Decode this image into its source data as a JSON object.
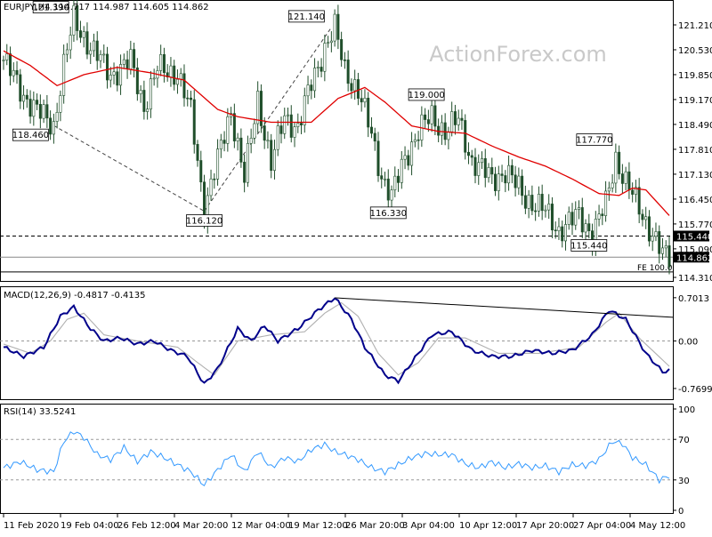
{
  "header": {
    "main_title": "EURJPY,H4  114.717 114.987 114.605 114.862",
    "macd_title": "MACD(12,26,9) -0.4817 -0.4135",
    "rsi_title": "RSI(14) 33.5241",
    "watermark": "ActionForex.com"
  },
  "colors": {
    "candle": "#1f4e2a",
    "moving_average": "#e00000",
    "macd_line": "#00008b",
    "signal_line": "#b0b0b0",
    "rsi_line": "#3399ff",
    "dashed_level": "#000000"
  },
  "chart_data": [
    {
      "type": "candlestick",
      "title": "EURJPY,H4  114.717 114.987 114.605 114.862",
      "y_ticks": [
        "121.210",
        "120.530",
        "119.850",
        "119.170",
        "118.490",
        "117.810",
        "117.130",
        "116.450",
        "115.770",
        "115.090",
        "114.310"
      ],
      "ylim": [
        114.31,
        121.55
      ],
      "x_tick_labels": [
        "11 Feb 2020",
        "19 Feb 04:00",
        "26 Feb 12:00",
        "4 Mar 20:00",
        "12 Mar 04:00",
        "19 Mar 12:00",
        "26 Mar 20:00",
        "3 Apr 04:00",
        "10 Apr 12:00",
        "17 Apr 20:00",
        "27 Apr 04:00",
        "4 May 12:00"
      ],
      "price_labels": [
        {
          "label": "121.390",
          "value": 121.39,
          "bar": 20
        },
        {
          "label": "118.460",
          "value": 118.46,
          "bar": 15
        },
        {
          "label": "116.120",
          "value": 116.12,
          "bar": 60
        },
        {
          "label": "121.140",
          "value": 121.14,
          "bar": 98
        },
        {
          "label": "116.330",
          "value": 116.33,
          "bar": 115
        },
        {
          "label": "119.000",
          "value": 119.0,
          "bar": 128
        },
        {
          "label": "115.440",
          "value": 115.44,
          "bar": 175
        },
        {
          "label": "117.770",
          "value": 117.77,
          "bar": 183
        }
      ],
      "horizontal_level": {
        "label": "115.440",
        "value": 115.44
      },
      "last_price": {
        "label": "114.862",
        "value": 114.862
      },
      "fe_label": "FE 100.0",
      "moving_average": [
        {
          "bar": 0,
          "value": 120.5
        },
        {
          "bar": 8,
          "value": 120.1
        },
        {
          "bar": 16,
          "value": 119.55
        },
        {
          "bar": 24,
          "value": 119.85
        },
        {
          "bar": 34,
          "value": 120.05
        },
        {
          "bar": 44,
          "value": 119.9
        },
        {
          "bar": 54,
          "value": 119.7
        },
        {
          "bar": 64,
          "value": 118.9
        },
        {
          "bar": 70,
          "value": 118.7
        },
        {
          "bar": 80,
          "value": 118.55
        },
        {
          "bar": 92,
          "value": 118.55
        },
        {
          "bar": 100,
          "value": 119.2
        },
        {
          "bar": 108,
          "value": 119.5
        },
        {
          "bar": 114,
          "value": 119.1
        },
        {
          "bar": 122,
          "value": 118.45
        },
        {
          "bar": 130,
          "value": 118.3
        },
        {
          "bar": 138,
          "value": 118.25
        },
        {
          "bar": 146,
          "value": 117.9
        },
        {
          "bar": 154,
          "value": 117.6
        },
        {
          "bar": 162,
          "value": 117.35
        },
        {
          "bar": 170,
          "value": 117.0
        },
        {
          "bar": 178,
          "value": 116.6
        },
        {
          "bar": 184,
          "value": 116.55
        },
        {
          "bar": 188,
          "value": 116.75
        },
        {
          "bar": 192,
          "value": 116.7
        },
        {
          "bar": 199,
          "value": 116.0
        }
      ],
      "price_path": [
        {
          "bar": 0,
          "value": 120.25
        },
        {
          "bar": 6,
          "value": 119.3
        },
        {
          "bar": 10,
          "value": 118.85
        },
        {
          "bar": 15,
          "value": 118.46
        },
        {
          "bar": 18,
          "value": 120.1
        },
        {
          "bar": 21,
          "value": 121.35
        },
        {
          "bar": 26,
          "value": 120.6
        },
        {
          "bar": 32,
          "value": 119.85
        },
        {
          "bar": 38,
          "value": 120.2
        },
        {
          "bar": 42,
          "value": 119.0
        },
        {
          "bar": 46,
          "value": 120.0
        },
        {
          "bar": 52,
          "value": 119.9
        },
        {
          "bar": 56,
          "value": 118.8
        },
        {
          "bar": 60,
          "value": 116.2
        },
        {
          "bar": 64,
          "value": 117.5
        },
        {
          "bar": 68,
          "value": 118.9
        },
        {
          "bar": 72,
          "value": 117.0
        },
        {
          "bar": 76,
          "value": 119.2
        },
        {
          "bar": 80,
          "value": 117.4
        },
        {
          "bar": 84,
          "value": 118.7
        },
        {
          "bar": 88,
          "value": 118.4
        },
        {
          "bar": 92,
          "value": 119.6
        },
        {
          "bar": 96,
          "value": 120.6
        },
        {
          "bar": 99,
          "value": 121.1
        },
        {
          "bar": 102,
          "value": 120.0
        },
        {
          "bar": 106,
          "value": 119.4
        },
        {
          "bar": 110,
          "value": 118.2
        },
        {
          "bar": 113,
          "value": 117.1
        },
        {
          "bar": 116,
          "value": 116.5
        },
        {
          "bar": 120,
          "value": 117.6
        },
        {
          "bar": 124,
          "value": 118.3
        },
        {
          "bar": 128,
          "value": 118.7
        },
        {
          "bar": 132,
          "value": 118.3
        },
        {
          "bar": 136,
          "value": 118.6
        },
        {
          "bar": 140,
          "value": 117.5
        },
        {
          "bar": 146,
          "value": 117.0
        },
        {
          "bar": 150,
          "value": 117.2
        },
        {
          "bar": 156,
          "value": 116.5
        },
        {
          "bar": 162,
          "value": 116.1
        },
        {
          "bar": 166,
          "value": 115.6
        },
        {
          "bar": 172,
          "value": 116.0
        },
        {
          "bar": 176,
          "value": 115.5
        },
        {
          "bar": 180,
          "value": 116.3
        },
        {
          "bar": 183,
          "value": 117.6
        },
        {
          "bar": 186,
          "value": 116.9
        },
        {
          "bar": 190,
          "value": 116.2
        },
        {
          "bar": 194,
          "value": 115.5
        },
        {
          "bar": 197,
          "value": 114.9
        },
        {
          "bar": 199,
          "value": 114.862
        }
      ]
    },
    {
      "type": "line",
      "title": "MACD(12,26,9) -0.4817 -0.4135",
      "y_ticks": [
        "0.7013",
        "0.00",
        "-0.7699"
      ],
      "ylim": [
        -0.9,
        0.8
      ],
      "series": [
        {
          "role": "macd",
          "values": [
            {
              "bar": 0,
              "value": -0.1
            },
            {
              "bar": 6,
              "value": -0.25
            },
            {
              "bar": 12,
              "value": -0.1
            },
            {
              "bar": 17,
              "value": 0.4
            },
            {
              "bar": 21,
              "value": 0.55
            },
            {
              "bar": 26,
              "value": 0.2
            },
            {
              "bar": 30,
              "value": 0.0
            },
            {
              "bar": 35,
              "value": 0.05
            },
            {
              "bar": 40,
              "value": -0.05
            },
            {
              "bar": 45,
              "value": 0.0
            },
            {
              "bar": 50,
              "value": -0.15
            },
            {
              "bar": 55,
              "value": -0.25
            },
            {
              "bar": 60,
              "value": -0.7
            },
            {
              "bar": 64,
              "value": -0.45
            },
            {
              "bar": 70,
              "value": 0.2
            },
            {
              "bar": 74,
              "value": 0.0
            },
            {
              "bar": 78,
              "value": 0.25
            },
            {
              "bar": 82,
              "value": 0.0
            },
            {
              "bar": 88,
              "value": 0.2
            },
            {
              "bar": 94,
              "value": 0.5
            },
            {
              "bar": 99,
              "value": 0.7
            },
            {
              "bar": 104,
              "value": 0.35
            },
            {
              "bar": 108,
              "value": -0.1
            },
            {
              "bar": 114,
              "value": -0.55
            },
            {
              "bar": 118,
              "value": -0.65
            },
            {
              "bar": 124,
              "value": -0.2
            },
            {
              "bar": 128,
              "value": 0.1
            },
            {
              "bar": 134,
              "value": 0.15
            },
            {
              "bar": 140,
              "value": -0.15
            },
            {
              "bar": 146,
              "value": -0.25
            },
            {
              "bar": 152,
              "value": -0.25
            },
            {
              "bar": 158,
              "value": -0.15
            },
            {
              "bar": 164,
              "value": -0.2
            },
            {
              "bar": 170,
              "value": -0.15
            },
            {
              "bar": 176,
              "value": 0.1
            },
            {
              "bar": 181,
              "value": 0.5
            },
            {
              "bar": 186,
              "value": 0.35
            },
            {
              "bar": 192,
              "value": -0.2
            },
            {
              "bar": 197,
              "value": -0.5
            },
            {
              "bar": 199,
              "value": -0.48
            }
          ]
        },
        {
          "role": "signal",
          "values": [
            {
              "bar": 0,
              "value": -0.05
            },
            {
              "bar": 8,
              "value": -0.2
            },
            {
              "bar": 14,
              "value": 0.0
            },
            {
              "bar": 19,
              "value": 0.35
            },
            {
              "bar": 24,
              "value": 0.45
            },
            {
              "bar": 30,
              "value": 0.1
            },
            {
              "bar": 40,
              "value": 0.0
            },
            {
              "bar": 52,
              "value": -0.1
            },
            {
              "bar": 58,
              "value": -0.35
            },
            {
              "bar": 63,
              "value": -0.55
            },
            {
              "bar": 70,
              "value": 0.0
            },
            {
              "bar": 80,
              "value": 0.1
            },
            {
              "bar": 90,
              "value": 0.15
            },
            {
              "bar": 96,
              "value": 0.45
            },
            {
              "bar": 101,
              "value": 0.62
            },
            {
              "bar": 106,
              "value": 0.4
            },
            {
              "bar": 112,
              "value": -0.2
            },
            {
              "bar": 118,
              "value": -0.55
            },
            {
              "bar": 124,
              "value": -0.35
            },
            {
              "bar": 130,
              "value": 0.05
            },
            {
              "bar": 138,
              "value": 0.05
            },
            {
              "bar": 148,
              "value": -0.2
            },
            {
              "bar": 160,
              "value": -0.2
            },
            {
              "bar": 172,
              "value": -0.1
            },
            {
              "bar": 180,
              "value": 0.3
            },
            {
              "bar": 184,
              "value": 0.45
            },
            {
              "bar": 190,
              "value": 0.05
            },
            {
              "bar": 199,
              "value": -0.41
            }
          ]
        }
      ],
      "trendline": [
        {
          "bar": 99,
          "value": 0.7
        },
        {
          "bar": 210,
          "value": 0.35
        }
      ]
    },
    {
      "type": "line",
      "title": "RSI(14) 33.5241",
      "y_ticks": [
        "100",
        "70",
        "30",
        "0"
      ],
      "ylim": [
        0,
        100
      ],
      "levels": [
        70,
        30
      ],
      "series": [
        {
          "role": "rsi",
          "values": [
            {
              "bar": 0,
              "value": 42
            },
            {
              "bar": 5,
              "value": 48
            },
            {
              "bar": 10,
              "value": 40
            },
            {
              "bar": 15,
              "value": 38
            },
            {
              "bar": 18,
              "value": 68
            },
            {
              "bar": 21,
              "value": 78
            },
            {
              "bar": 24,
              "value": 72
            },
            {
              "bar": 28,
              "value": 55
            },
            {
              "bar": 32,
              "value": 50
            },
            {
              "bar": 36,
              "value": 62
            },
            {
              "bar": 40,
              "value": 48
            },
            {
              "bar": 44,
              "value": 58
            },
            {
              "bar": 48,
              "value": 52
            },
            {
              "bar": 52,
              "value": 45
            },
            {
              "bar": 56,
              "value": 38
            },
            {
              "bar": 60,
              "value": 25
            },
            {
              "bar": 64,
              "value": 40
            },
            {
              "bar": 68,
              "value": 55
            },
            {
              "bar": 72,
              "value": 38
            },
            {
              "bar": 76,
              "value": 58
            },
            {
              "bar": 80,
              "value": 42
            },
            {
              "bar": 84,
              "value": 52
            },
            {
              "bar": 88,
              "value": 48
            },
            {
              "bar": 92,
              "value": 60
            },
            {
              "bar": 96,
              "value": 65
            },
            {
              "bar": 99,
              "value": 58
            },
            {
              "bar": 102,
              "value": 55
            },
            {
              "bar": 106,
              "value": 50
            },
            {
              "bar": 110,
              "value": 42
            },
            {
              "bar": 114,
              "value": 38
            },
            {
              "bar": 118,
              "value": 45
            },
            {
              "bar": 122,
              "value": 52
            },
            {
              "bar": 126,
              "value": 56
            },
            {
              "bar": 130,
              "value": 55
            },
            {
              "bar": 134,
              "value": 55
            },
            {
              "bar": 138,
              "value": 46
            },
            {
              "bar": 142,
              "value": 42
            },
            {
              "bar": 146,
              "value": 48
            },
            {
              "bar": 150,
              "value": 42
            },
            {
              "bar": 154,
              "value": 46
            },
            {
              "bar": 158,
              "value": 42
            },
            {
              "bar": 162,
              "value": 44
            },
            {
              "bar": 166,
              "value": 38
            },
            {
              "bar": 170,
              "value": 45
            },
            {
              "bar": 174,
              "value": 44
            },
            {
              "bar": 178,
              "value": 50
            },
            {
              "bar": 182,
              "value": 68
            },
            {
              "bar": 185,
              "value": 66
            },
            {
              "bar": 188,
              "value": 52
            },
            {
              "bar": 192,
              "value": 45
            },
            {
              "bar": 196,
              "value": 30
            },
            {
              "bar": 199,
              "value": 34
            }
          ]
        }
      ]
    }
  ]
}
